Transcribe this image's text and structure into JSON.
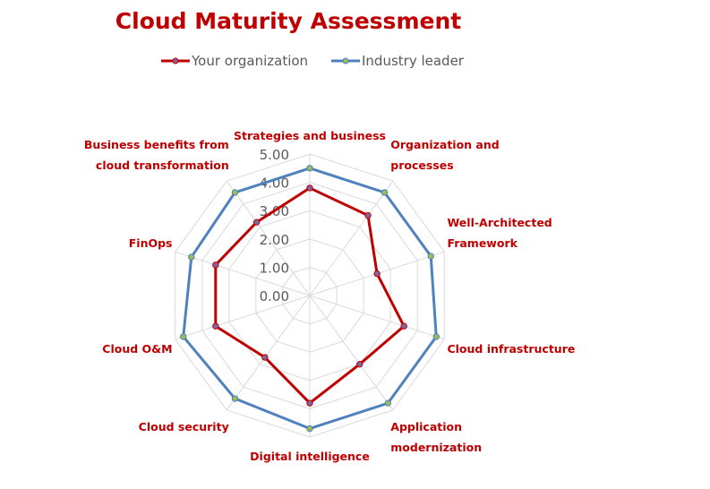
{
  "chart_data": {
    "type": "radar",
    "title": "Cloud Maturity Assessment",
    "legend_position": "top",
    "grid": true,
    "ylim": [
      0,
      5
    ],
    "ticks": [
      "0.00",
      "1.00",
      "2.00",
      "3.00",
      "4.00",
      "5.00"
    ],
    "categories": [
      [
        "Strategies and business"
      ],
      [
        "Organization and",
        "processes"
      ],
      [
        "Well-Architected",
        "Framework"
      ],
      [
        "Cloud infrastructure"
      ],
      [
        "Application",
        "modernization"
      ],
      [
        "Digital intelligence"
      ],
      [
        "Cloud security"
      ],
      [
        "Cloud O&M"
      ],
      [
        "FinOps"
      ],
      [
        "Business benefits from",
        "cloud transformation"
      ]
    ],
    "series": [
      {
        "name": "Your organization",
        "values": [
          3.8,
          3.5,
          2.5,
          3.5,
          3.0,
          3.8,
          2.7,
          3.5,
          3.5,
          3.2
        ],
        "color": "#c00000",
        "marker_color": "#8064a2"
      },
      {
        "name": "Industry leader",
        "values": [
          4.5,
          4.5,
          4.5,
          4.7,
          4.7,
          4.7,
          4.5,
          4.7,
          4.4,
          4.5
        ],
        "color": "#4f81bd",
        "marker_color": "#9bbb59"
      }
    ]
  }
}
